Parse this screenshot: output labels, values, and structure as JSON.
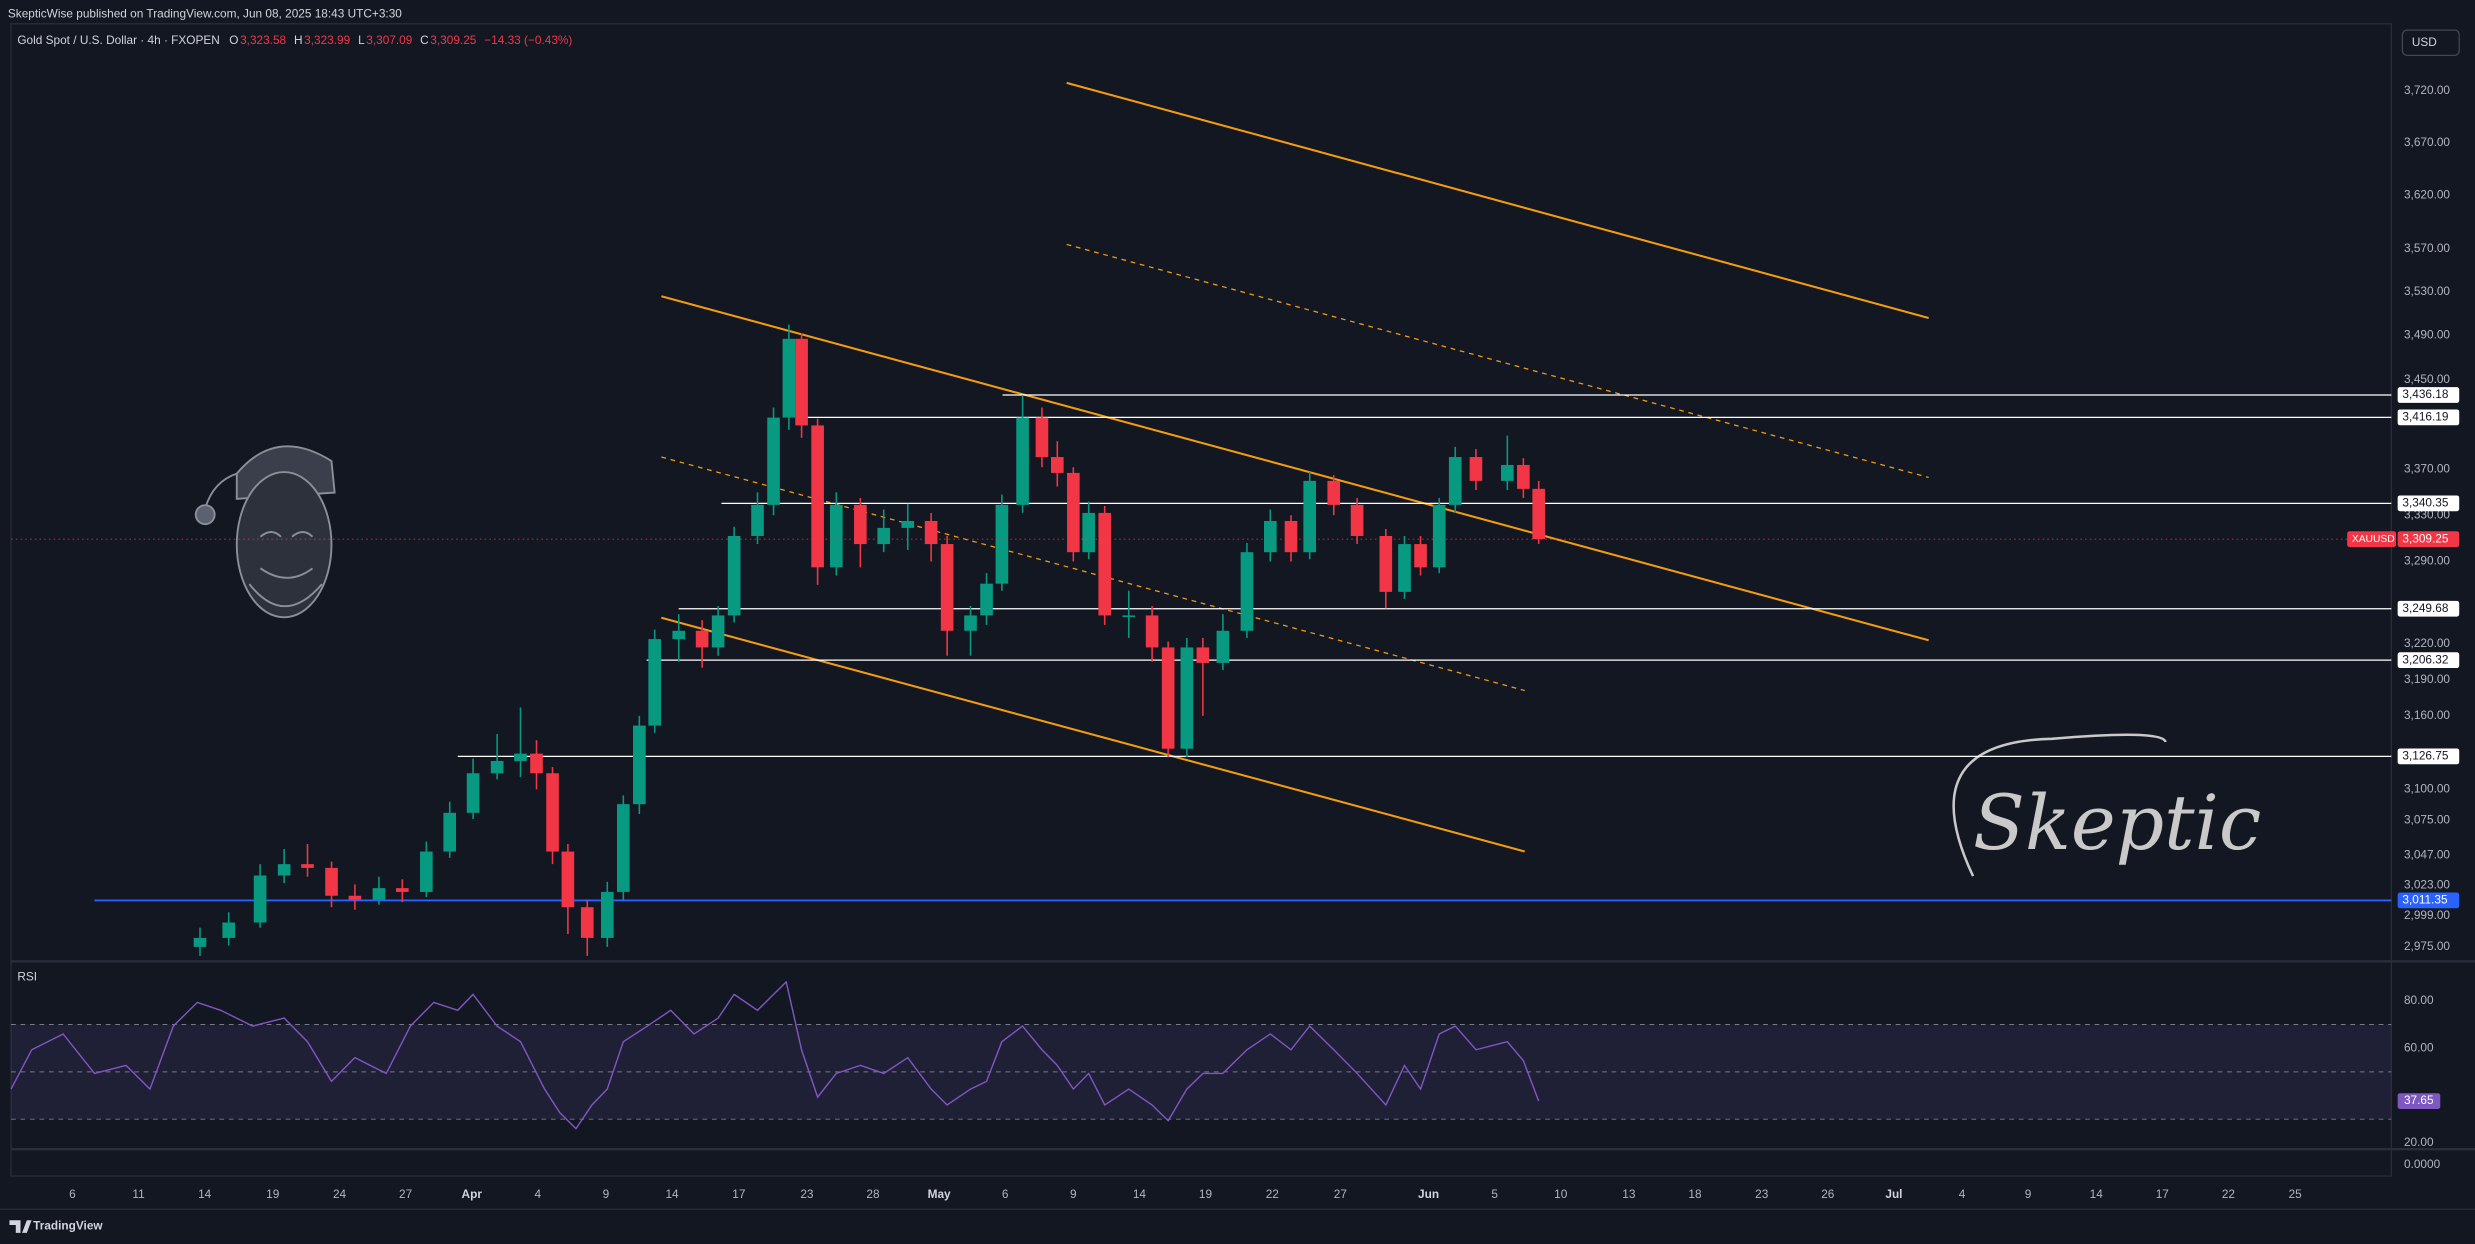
{
  "header": {
    "publisher": "SkepticWise published on TradingView.com, Jun 08, 2025 18:43 UTC+3:30",
    "ohlc": [
      {
        "key": "O",
        "value": "3,323.58"
      },
      {
        "key": "H",
        "value": "3,323.99"
      },
      {
        "key": "L",
        "value": "3,307.09"
      },
      {
        "key": "C",
        "value": "3,309.25"
      }
    ],
    "change": "−14.33 (−0.43%)",
    "currency": "USD"
  },
  "branding": {
    "signature": "Skeptic"
  },
  "footer": {
    "brand": "TradingView"
  },
  "chart_data": [
    {
      "type": "candlestick",
      "title": "Gold Spot / U.S. Dollar · 4h · FXOPEN",
      "scale": "log",
      "grid": false,
      "up_color": "#089981",
      "down_color": "#f23645",
      "ylim": [
        2965,
        3786
      ],
      "yticks": [
        {
          "value": 3720,
          "label": "3,720.00"
        },
        {
          "value": 3670,
          "label": "3,670.00"
        },
        {
          "value": 3620,
          "label": "3,620.00"
        },
        {
          "value": 3570,
          "label": "3,570.00"
        },
        {
          "value": 3530,
          "label": "3,530.00"
        },
        {
          "value": 3490,
          "label": "3,490.00"
        },
        {
          "value": 3450,
          "label": "3,450.00"
        },
        {
          "value": 3370,
          "label": "3,370.00"
        },
        {
          "value": 3330,
          "label": "3,330.00"
        },
        {
          "value": 3290,
          "label": "3,290.00"
        },
        {
          "value": 3220,
          "label": "3,220.00"
        },
        {
          "value": 3190,
          "label": "3,190.00"
        },
        {
          "value": 3160,
          "label": "3,160.00"
        },
        {
          "value": 3100,
          "label": "3,100.00"
        },
        {
          "value": 3075,
          "label": "3,075.00"
        },
        {
          "value": 3047,
          "label": "3,047.00"
        },
        {
          "value": 3023,
          "label": "3,023.00"
        },
        {
          "value": 2999,
          "label": "2,999.00"
        },
        {
          "value": 2975,
          "label": "2,975.00"
        }
      ],
      "xlim": [
        -0.92,
        34.73
      ],
      "xticks": [
        {
          "value": 0,
          "label": "6"
        },
        {
          "value": 0.99,
          "label": "11"
        },
        {
          "value": 1.98,
          "label": "14"
        },
        {
          "value": 3.0,
          "label": "19"
        },
        {
          "value": 4.0,
          "label": "24"
        },
        {
          "value": 4.99,
          "label": "27"
        },
        {
          "value": 5.98,
          "label": "Apr"
        },
        {
          "value": 6.97,
          "label": "4"
        },
        {
          "value": 7.99,
          "label": "9"
        },
        {
          "value": 8.98,
          "label": "14"
        },
        {
          "value": 9.98,
          "label": "17"
        },
        {
          "value": 11.0,
          "label": "23"
        },
        {
          "value": 11.99,
          "label": "28"
        },
        {
          "value": 12.98,
          "label": "May"
        },
        {
          "value": 13.97,
          "label": "6"
        },
        {
          "value": 14.99,
          "label": "9"
        },
        {
          "value": 15.98,
          "label": "14"
        },
        {
          "value": 16.97,
          "label": "19"
        },
        {
          "value": 17.97,
          "label": "22"
        },
        {
          "value": 18.99,
          "label": "27"
        },
        {
          "value": 20.31,
          "label": "Jun"
        },
        {
          "value": 21.3,
          "label": "5"
        },
        {
          "value": 22.29,
          "label": "10"
        },
        {
          "value": 23.31,
          "label": "13"
        },
        {
          "value": 24.3,
          "label": "18"
        },
        {
          "value": 25.3,
          "label": "23"
        },
        {
          "value": 26.29,
          "label": "26"
        },
        {
          "value": 27.28,
          "label": "Jul"
        },
        {
          "value": 28.3,
          "label": "4"
        },
        {
          "value": 29.29,
          "label": "9"
        },
        {
          "value": 30.31,
          "label": "14"
        },
        {
          "value": 31.3,
          "label": "17"
        },
        {
          "value": 32.29,
          "label": "22"
        },
        {
          "value": 33.29,
          "label": "25"
        }
      ],
      "x": [
        1.91,
        2.34,
        2.81,
        3.17,
        3.52,
        3.88,
        4.23,
        4.59,
        4.94,
        5.3,
        5.65,
        6.0,
        6.36,
        6.71,
        6.95,
        7.19,
        7.42,
        7.71,
        8.01,
        8.25,
        8.49,
        8.72,
        9.08,
        9.43,
        9.67,
        9.91,
        10.26,
        10.5,
        10.73,
        10.92,
        11.16,
        11.44,
        11.8,
        12.15,
        12.51,
        12.86,
        13.1,
        13.45,
        13.69,
        13.92,
        14.23,
        14.52,
        14.75,
        14.99,
        15.22,
        15.46,
        15.82,
        16.17,
        16.41,
        16.69,
        16.93,
        17.23,
        17.59,
        17.94,
        18.25,
        18.53,
        18.89,
        19.24,
        19.67,
        19.95,
        20.19,
        20.47,
        20.71,
        21.02,
        21.49,
        21.73,
        21.96
      ],
      "open": [
        2975,
        2982,
        2994,
        3031,
        3040,
        3037,
        3015,
        3012,
        3021,
        3018,
        3050,
        3081,
        3113,
        3123,
        3129,
        3113,
        3050,
        3006,
        2982,
        3018,
        3088,
        3152,
        3224,
        3231,
        3217,
        3244,
        3312,
        3339,
        3416,
        3487,
        3409,
        3285,
        3339,
        3305,
        3319,
        3325,
        3305,
        3231,
        3244,
        3271,
        3339,
        3416,
        3381,
        3367,
        3298,
        3332,
        3244,
        3244,
        3217,
        3133,
        3217,
        3204,
        3231,
        3298,
        3325,
        3298,
        3360,
        3339,
        3312,
        3264,
        3305,
        3285,
        3339,
        3381,
        3360,
        3374,
        3353
      ],
      "high": [
        2990,
        3002,
        3040,
        3052,
        3056,
        3042,
        3024,
        3030,
        3028,
        3058,
        3090,
        3125,
        3145,
        3167,
        3140,
        3118,
        3056,
        3012,
        3026,
        3095,
        3160,
        3232,
        3245,
        3240,
        3252,
        3320,
        3350,
        3425,
        3500,
        3492,
        3415,
        3350,
        3345,
        3335,
        3340,
        3332,
        3312,
        3252,
        3280,
        3348,
        3436,
        3425,
        3395,
        3372,
        3342,
        3338,
        3265,
        3252,
        3222,
        3225,
        3225,
        3245,
        3306,
        3335,
        3330,
        3368,
        3365,
        3345,
        3318,
        3312,
        3312,
        3345,
        3390,
        3388,
        3400,
        3380,
        3360
      ],
      "low": [
        2968,
        2976,
        2990,
        3025,
        3030,
        3006,
        3004,
        3008,
        3010,
        3014,
        3045,
        3076,
        3108,
        3110,
        3100,
        3040,
        2985,
        2968,
        2975,
        3012,
        3080,
        3146,
        3205,
        3200,
        3210,
        3238,
        3305,
        3330,
        3405,
        3398,
        3270,
        3278,
        3285,
        3298,
        3300,
        3290,
        3210,
        3210,
        3236,
        3265,
        3332,
        3372,
        3355,
        3290,
        3292,
        3236,
        3225,
        3205,
        3126,
        3126,
        3160,
        3198,
        3225,
        3290,
        3290,
        3292,
        3330,
        3305,
        3250,
        3258,
        3278,
        3280,
        3332,
        3352,
        3352,
        3345,
        3305
      ],
      "close": [
        2982,
        2994,
        3031,
        3040,
        3037,
        3015,
        3012,
        3021,
        3018,
        3050,
        3081,
        3113,
        3123,
        3129,
        3113,
        3050,
        3006,
        2982,
        3018,
        3088,
        3152,
        3224,
        3231,
        3217,
        3244,
        3312,
        3339,
        3416,
        3487,
        3409,
        3285,
        3339,
        3305,
        3319,
        3325,
        3305,
        3231,
        3244,
        3271,
        3339,
        3416,
        3381,
        3367,
        3298,
        3332,
        3244,
        3244,
        3217,
        3133,
        3217,
        3204,
        3231,
        3298,
        3325,
        3298,
        3360,
        3339,
        3312,
        3264,
        3305,
        3285,
        3339,
        3381,
        3360,
        3374,
        3353,
        3309.25
      ],
      "levels": [
        {
          "value": 3436.18,
          "label": "3,436.18",
          "from": 13.93,
          "color": "#ffffff"
        },
        {
          "value": 3416.19,
          "label": "3,416.19",
          "from": 10.85,
          "color": "#ffffff"
        },
        {
          "value": 3340.35,
          "label": "3,340.35",
          "from": 9.72,
          "color": "#ffffff"
        },
        {
          "value": 3249.68,
          "label": "3,249.68",
          "from": 9.08,
          "color": "#ffffff"
        },
        {
          "value": 3206.32,
          "label": "3,206.32",
          "from": 8.6,
          "color": "#ffffff"
        },
        {
          "value": 3126.75,
          "label": "3,126.75",
          "from": 5.77,
          "color": "#ffffff"
        },
        {
          "value": 3011.35,
          "label": "3,011.35",
          "from": 0.33,
          "color": "#2962ff"
        }
      ],
      "trendlines": [
        {
          "x": [
            8.82,
            27.8
          ],
          "y": [
            3526,
            3223
          ],
          "color": "#f39c12",
          "dashed": false
        },
        {
          "x": [
            8.82,
            21.75
          ],
          "y": [
            3242,
            3050
          ],
          "color": "#f39c12",
          "dashed": false
        },
        {
          "x": [
            8.82,
            21.75
          ],
          "y": [
            3381,
            3181
          ],
          "color": "#f39c12",
          "dashed": true
        },
        {
          "x": [
            14.89,
            27.8
          ],
          "y": [
            3728,
            3506
          ],
          "color": "#f39c12",
          "dashed": false
        },
        {
          "x": [
            14.89,
            27.8
          ],
          "y": [
            3574,
            3363
          ],
          "color": "#f39c12",
          "dashed": true
        }
      ],
      "last_price": {
        "name": "XAUUSD",
        "value": 3309.25,
        "label": "3,309.25",
        "color": "#f23645"
      }
    },
    {
      "type": "line",
      "title": "RSI",
      "color": "#7e57c2",
      "ylim": [
        17.33,
        96
      ],
      "yticks": [
        {
          "value": 80,
          "label": "80.00"
        },
        {
          "value": 60,
          "label": "60.00"
        },
        {
          "value": 20,
          "label": "20.00"
        }
      ],
      "band": [
        30,
        70
      ],
      "midline": 50,
      "xlim": [
        -0.92,
        34.73
      ],
      "x": [
        -0.92,
        -0.61,
        -0.14,
        0.33,
        0.8,
        1.16,
        1.51,
        1.87,
        2.22,
        2.7,
        3.17,
        3.52,
        3.88,
        4.23,
        4.7,
        5.06,
        5.41,
        5.77,
        6.0,
        6.36,
        6.71,
        7.07,
        7.3,
        7.54,
        7.78,
        8.01,
        8.25,
        8.61,
        8.96,
        9.31,
        9.67,
        9.91,
        10.26,
        10.5,
        10.69,
        10.92,
        11.16,
        11.44,
        11.8,
        12.15,
        12.51,
        12.86,
        13.1,
        13.45,
        13.69,
        13.92,
        14.23,
        14.52,
        14.75,
        14.99,
        15.22,
        15.46,
        15.82,
        16.17,
        16.41,
        16.69,
        16.93,
        17.23,
        17.59,
        17.94,
        18.25,
        18.53,
        18.89,
        19.24,
        19.67,
        19.95,
        20.19,
        20.47,
        20.71,
        21.02,
        21.49,
        21.73,
        21.96
      ],
      "values": [
        42.7,
        59.3,
        66.0,
        49.3,
        52.7,
        42.7,
        69.3,
        79.3,
        76.0,
        69.3,
        72.7,
        62.7,
        46.0,
        56.0,
        49.3,
        69.3,
        79.3,
        76.0,
        82.7,
        69.3,
        62.7,
        42.7,
        32.7,
        26.0,
        36.0,
        42.7,
        62.7,
        69.3,
        76.0,
        66.0,
        72.7,
        82.7,
        76.0,
        82.7,
        88.0,
        59.3,
        39.3,
        49.3,
        52.7,
        49.3,
        56.0,
        42.7,
        36.0,
        42.7,
        46.0,
        62.7,
        69.3,
        59.3,
        52.7,
        42.7,
        49.3,
        36.0,
        42.7,
        36.0,
        29.3,
        42.7,
        49.3,
        49.3,
        59.3,
        66.0,
        59.3,
        69.3,
        59.3,
        49.3,
        36.0,
        52.7,
        42.7,
        66.0,
        69.3,
        59.3,
        62.7,
        54.7,
        37.65
      ],
      "last_label": "37.65",
      "lower_pane_label": "0.0000"
    }
  ]
}
